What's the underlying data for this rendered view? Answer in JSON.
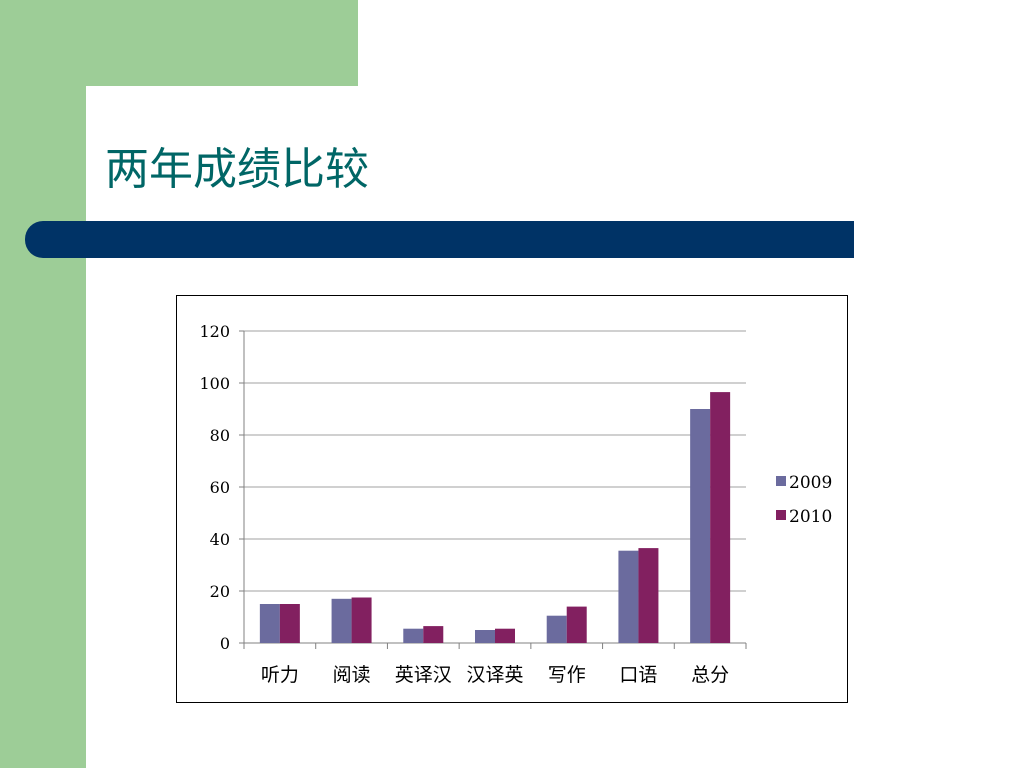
{
  "slide": {
    "title": "两年成绩比较",
    "colors": {
      "green": "#9dcd97",
      "navy": "#003366",
      "title_text": "#006666",
      "background": "#ffffff"
    }
  },
  "chart_data": {
    "type": "bar",
    "title": "",
    "xlabel": "",
    "ylabel": "",
    "categories": [
      "听力",
      "阅读",
      "英译汉",
      "汉译英",
      "写作",
      "口语",
      "总分"
    ],
    "series": [
      {
        "name": "2009",
        "values": [
          15,
          17,
          5.5,
          5,
          10.5,
          35.5,
          90
        ],
        "color": "#6b6b9e"
      },
      {
        "name": "2010",
        "values": [
          15,
          17.5,
          6.5,
          5.5,
          14,
          36.5,
          96.5
        ],
        "color": "#822060"
      }
    ],
    "ylim": [
      0,
      120
    ],
    "yticks": [
      "0",
      "20",
      "40",
      "60",
      "80",
      "100",
      "120"
    ],
    "grid": true,
    "legend_position": "right"
  }
}
